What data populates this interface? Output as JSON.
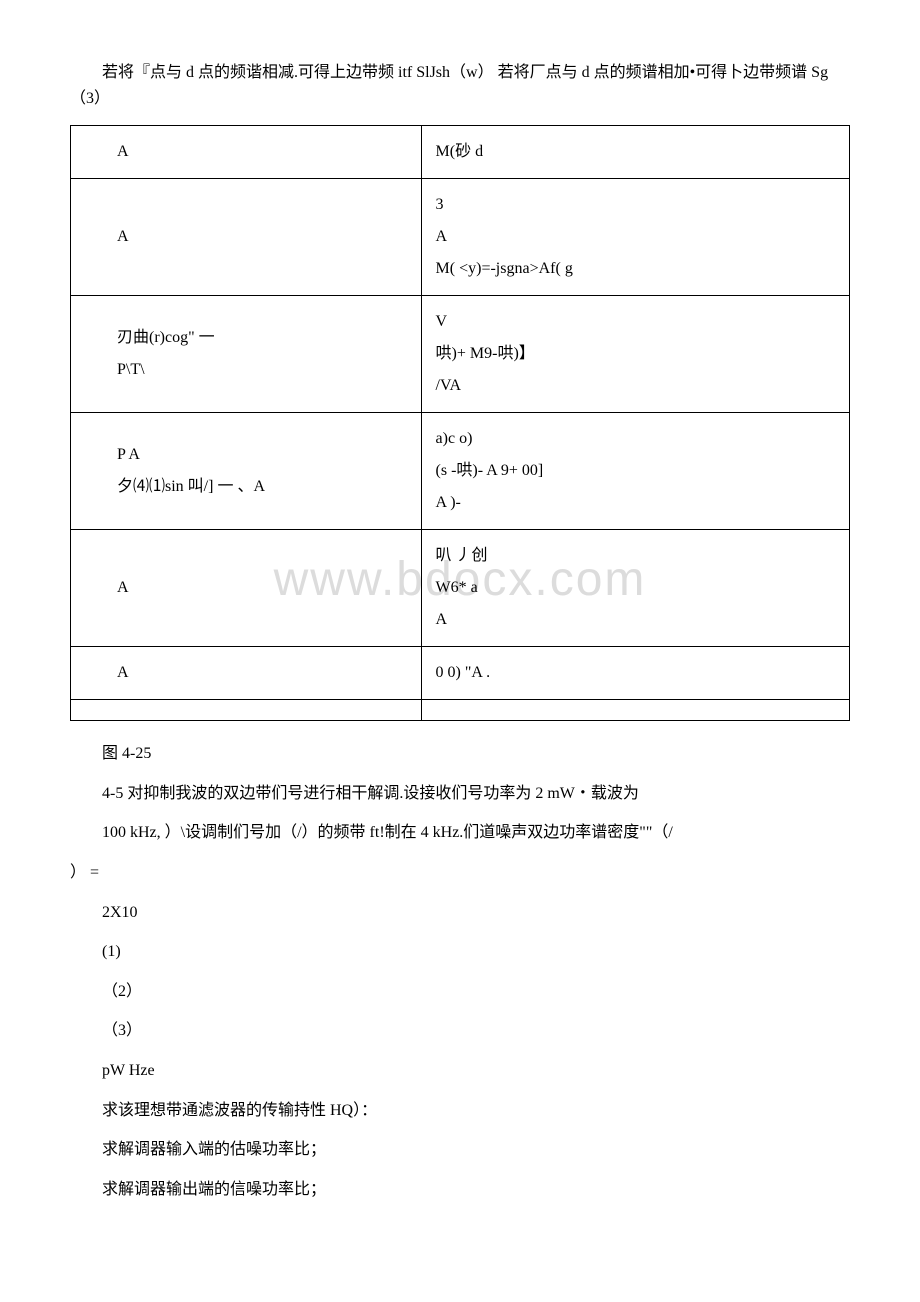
{
  "intro_paragraph": "若将『点与 d 点的频谐相减.可得上边带频 itf SlJsh（w） 若将厂点与 d 点的频谱相加•可得卜边带频谱 Sg（3）",
  "table": {
    "border_color": "#000000",
    "rows": [
      {
        "left": [
          "A"
        ],
        "right": [
          "M(砂 d"
        ]
      },
      {
        "left": [
          "A"
        ],
        "right": [
          "3",
          "A",
          "M( <y)=-jsgna>Af( g"
        ]
      },
      {
        "left": [
          "刃曲(r)cog\" 一",
          "P\\T\\"
        ],
        "right": [
          "V",
          "哄)+ M9-哄)】",
          "/VA"
        ]
      },
      {
        "left": [
          "P A",
          "夕⑷⑴sin 叫/] 一 、A"
        ],
        "right": [
          "a)c o)",
          "(s -哄)- A 9+ 00]",
          "A )-"
        ]
      },
      {
        "left": [
          "A"
        ],
        "right": [
          "叭 丿创",
          "W6* a",
          "A"
        ]
      },
      {
        "left": [
          "A"
        ],
        "right": [
          "0 0) \"A ."
        ]
      },
      {
        "left": [
          ""
        ],
        "right": [
          ""
        ]
      }
    ]
  },
  "caption": "图 4-25",
  "para_4_5": "4-5 对抑制我波的双边带们号进行相干解调.设接收们号功率为 2 mW・载波为",
  "para_100khz_a": "100 kHz, ）\\设调制们号加（/）的频带 ft!制在 4 kHz.们道噪声双边功率谱密度\"\"（/",
  "para_100khz_b": "） =",
  "para_2x10": "2X10",
  "para_list1": "(1)",
  "para_list2": "（2）",
  "para_list3": "（3）",
  "para_pw": "pW Hze",
  "para_q1": "求该理想带通滤波器的传输持性 HQ）：",
  "para_q2": "求解调器输入端的估噪功率比；",
  "para_q3": "求解调器输出端的信噪功率比；",
  "watermark_text": "www.bdocx.com",
  "colors": {
    "text": "#000000",
    "background": "#ffffff",
    "watermark": "#dcdcdc",
    "border": "#000000"
  },
  "typography": {
    "base_font_size": 16,
    "watermark_font_size": 48,
    "line_height": 1.6
  }
}
